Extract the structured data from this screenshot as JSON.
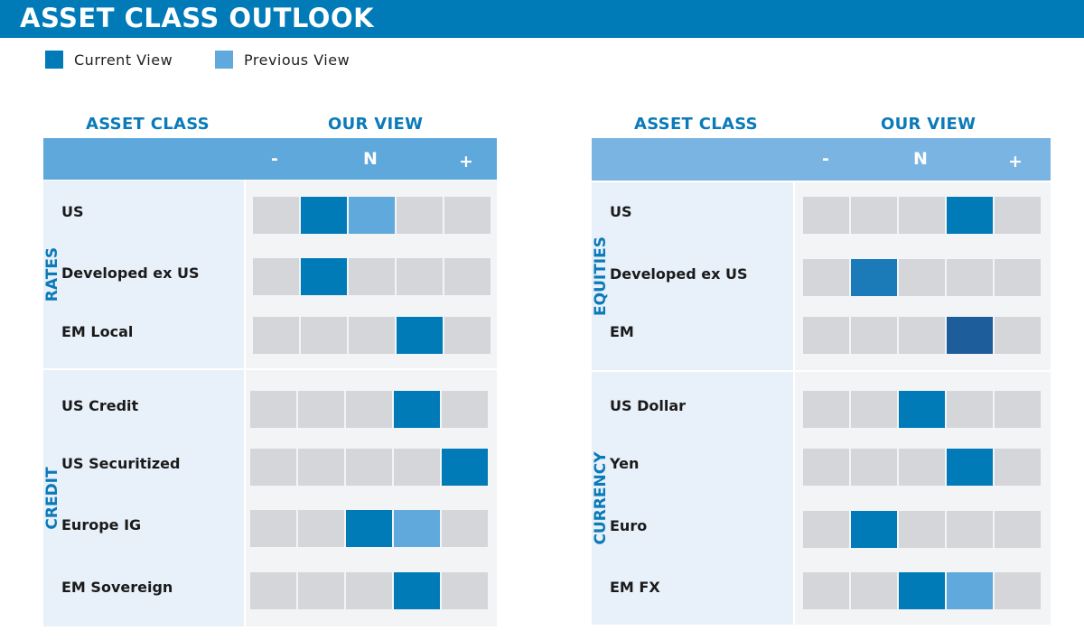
{
  "title": "ASSET CLASS OUTLOOK",
  "legend": {
    "current": "Current View",
    "previous": "Previous View"
  },
  "colors": {
    "current": "#007bb8",
    "previous": "#5fa9dc",
    "empty": "#d5d6da"
  },
  "headers": {
    "asset_class": "ASSET CLASS",
    "our_view": "OUR VIEW",
    "minus": "-",
    "neutral": "N",
    "plus": "+"
  },
  "scale_positions": 5,
  "left": [
    {
      "name": "RATES",
      "rows": [
        {
          "label": "US",
          "current": 2,
          "previous": 3
        },
        {
          "label": "Developed ex US",
          "current": 2
        },
        {
          "label": "EM Local",
          "current": 4
        }
      ]
    },
    {
      "name": "CREDIT",
      "rows": [
        {
          "label": "US Credit",
          "current": 4
        },
        {
          "label": "US Securitized",
          "current": 5
        },
        {
          "label": "Europe IG",
          "current": 3,
          "previous": 4
        },
        {
          "label": "EM Sovereign",
          "current": 4
        }
      ]
    }
  ],
  "right": [
    {
      "name": "EQUITIES",
      "rows": [
        {
          "label": "US",
          "current": 4
        },
        {
          "label": "Developed ex US",
          "current": 2,
          "color": "#1a7bb8"
        },
        {
          "label": "EM",
          "current": 4,
          "color": "#1e5d9b"
        }
      ]
    },
    {
      "name": "CURRENCY",
      "rows": [
        {
          "label": "US Dollar",
          "current": 3
        },
        {
          "label": "Yen",
          "current": 4
        },
        {
          "label": "Euro",
          "current": 2
        },
        {
          "label": "EM FX",
          "current": 3,
          "previous": 4
        }
      ]
    }
  ]
}
